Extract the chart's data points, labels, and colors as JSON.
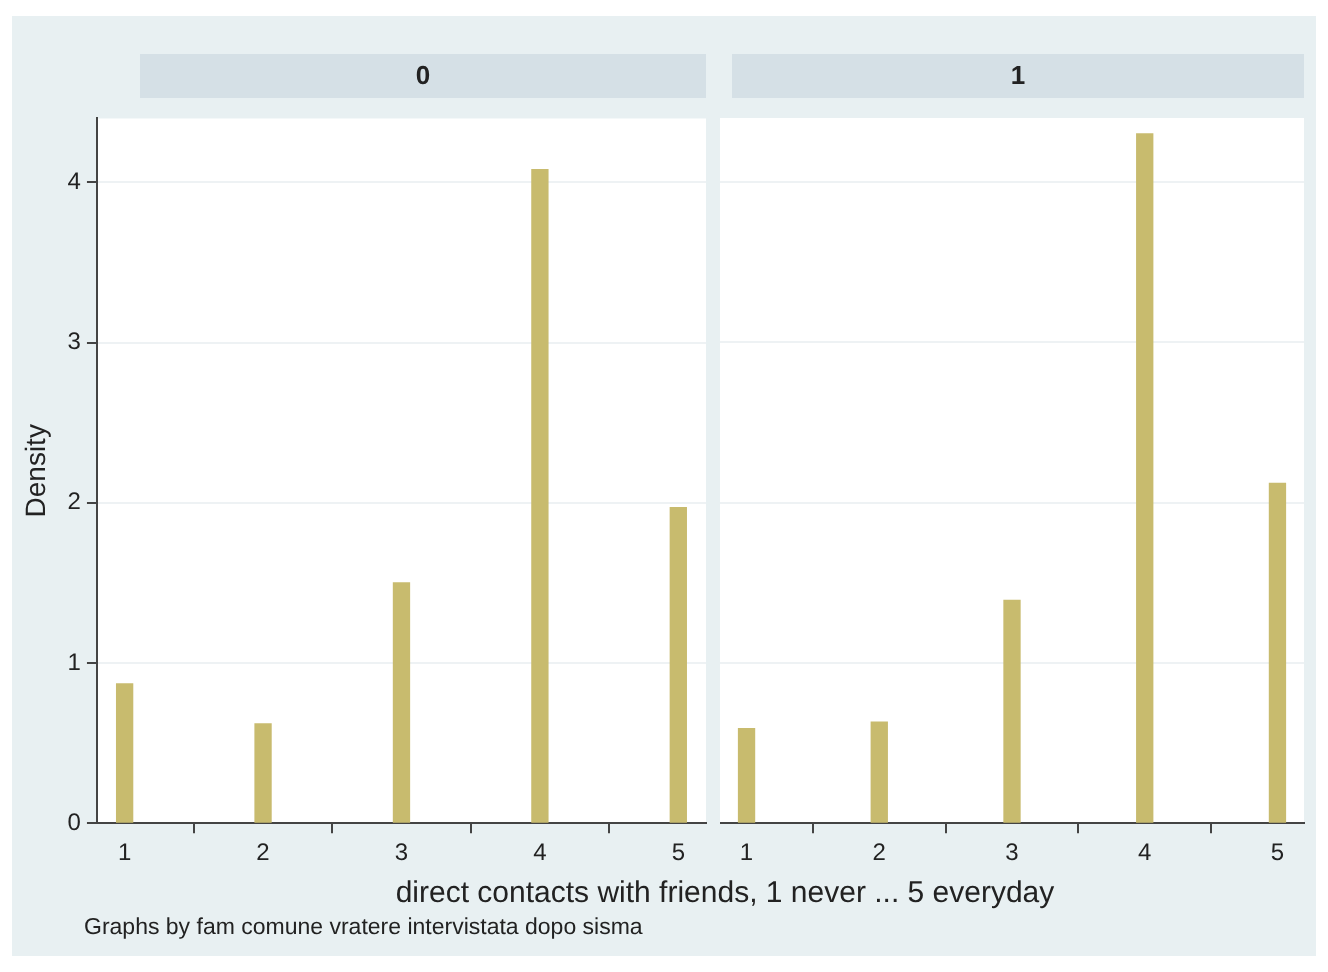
{
  "chart_data": [
    {
      "type": "bar",
      "title": "0",
      "x": [
        1,
        2,
        3,
        4,
        5
      ],
      "values": [
        0.87,
        0.62,
        1.5,
        4.08,
        1.97
      ],
      "color": "#c8bb6e",
      "xlim": [
        0.8,
        5.2
      ],
      "xticks": [
        1,
        2,
        3,
        4,
        5
      ],
      "ylim": [
        0,
        4.4
      ],
      "yticks": [
        0,
        1,
        2,
        3,
        4
      ],
      "ylabel": "Density",
      "xlabel": "direct contacts with friends, 1 never ... 5 everyday",
      "annotations": [
        "Graphs by fam comune vratere intervistata dopo sisma"
      ],
      "grid": "y",
      "legend": false
    },
    {
      "type": "bar",
      "title": "1",
      "x": [
        1,
        2,
        3,
        4,
        5
      ],
      "values": [
        0.59,
        0.63,
        1.39,
        4.3,
        2.12
      ],
      "color": "#c8bb6e",
      "xlim": [
        0.8,
        5.2
      ],
      "xticks": [
        1,
        2,
        3,
        4,
        5
      ],
      "ylim": [
        0,
        4.4
      ],
      "yticks": [
        0,
        1,
        2,
        3,
        4
      ],
      "tick_labels": "x",
      "grid": "y",
      "legend": false
    }
  ]
}
